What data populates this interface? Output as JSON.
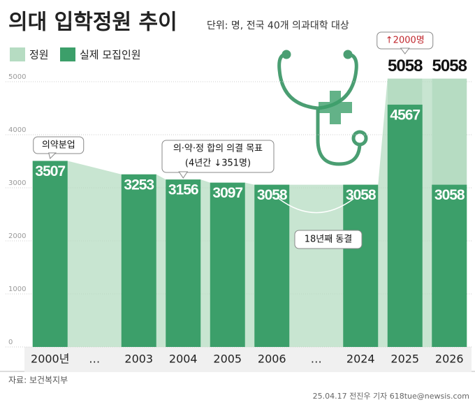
{
  "chart_data": {
    "type": "bar",
    "title": "의대 입학정원 추이",
    "subtitle": "단위: 명, 전국 40개 의과대학 대상",
    "categories": [
      "2000년",
      "…",
      "2003",
      "2004",
      "2005",
      "2006",
      "…",
      "2024",
      "2025",
      "2026"
    ],
    "series": [
      {
        "name": "정원",
        "color": "#b6dcc2",
        "values": [
          3507,
          null,
          3253,
          3156,
          3097,
          3058,
          null,
          3058,
          5058,
          5058
        ]
      },
      {
        "name": "실제 모집인원",
        "color": "#3c9f6a",
        "values": [
          3507,
          null,
          3253,
          3156,
          3097,
          3058,
          null,
          3058,
          4567,
          3058
        ]
      }
    ],
    "ylim": [
      0,
      5500
    ],
    "yticks": [
      0,
      1000,
      2000,
      3000,
      4000,
      5000
    ],
    "grid": true,
    "annotations": [
      "의약분업",
      "의·약·정 합의 의결 목표",
      "(4년간 ↓351명)",
      "18년째 동결",
      "↑2000명"
    ],
    "source": "자료: 보건복지부",
    "credit": "25.04.17 전진우 기자 618tue@newsis.com"
  }
}
